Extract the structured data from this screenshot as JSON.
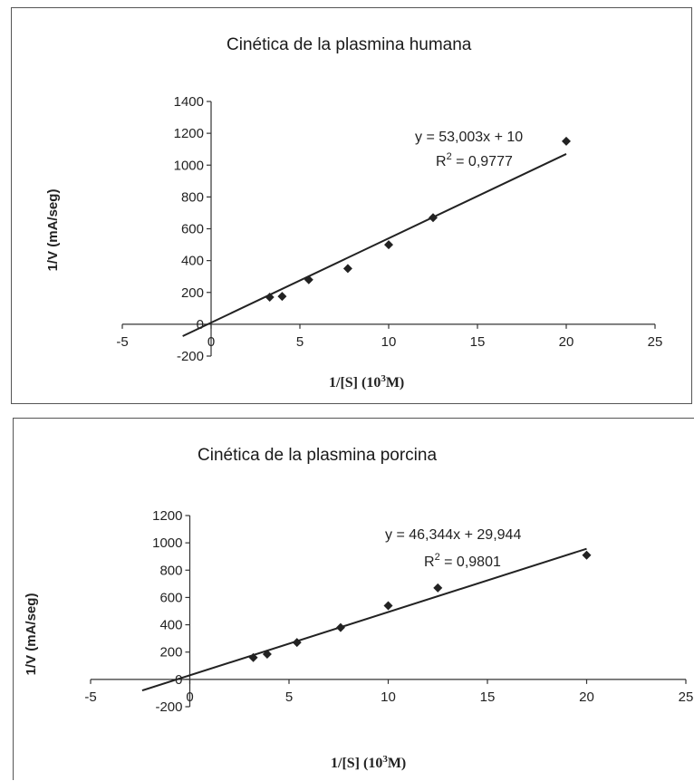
{
  "chart_data": [
    {
      "type": "scatter",
      "title": "Cinética de la plasmina humana",
      "xlabel": "1/[S] (10",
      "xlabel_sup": "3",
      "xlabel_tail": "M)",
      "ylabel": "1/V (mA/seg)",
      "xlim": [
        -5,
        25
      ],
      "ylim": [
        -200,
        1400
      ],
      "xticks": [
        -5,
        0,
        5,
        10,
        15,
        20,
        25
      ],
      "yticks": [
        -200,
        0,
        200,
        400,
        600,
        800,
        1000,
        1200,
        1400
      ],
      "x": [
        3.3,
        4.0,
        5.5,
        7.7,
        10.0,
        12.5,
        20.0
      ],
      "y": [
        170,
        175,
        280,
        350,
        500,
        670,
        1150
      ],
      "trendline": {
        "slope": 53.003,
        "intercept": 10,
        "x_range": [
          -1.6,
          20
        ]
      },
      "equation": "y = 53,003x + 10",
      "r2_prefix": "R",
      "r2_sup": "2",
      "r2_value": " = 0,9777",
      "marker_color": "#222222"
    },
    {
      "type": "scatter",
      "title": "Cinética de la plasmina porcina",
      "xlabel": "1/[S] (10",
      "xlabel_sup": "3",
      "xlabel_tail": "M)",
      "ylabel": "1/V (mA/seg)",
      "xlim": [
        -5,
        25
      ],
      "ylim": [
        -200,
        1200
      ],
      "xticks": [
        -5,
        0,
        5,
        10,
        15,
        20,
        25
      ],
      "yticks": [
        -200,
        0,
        200,
        400,
        600,
        800,
        1000,
        1200
      ],
      "x": [
        3.2,
        3.9,
        5.4,
        7.6,
        10.0,
        12.5,
        20.0
      ],
      "y": [
        160,
        185,
        270,
        380,
        540,
        670,
        910
      ],
      "trendline": {
        "slope": 46.344,
        "intercept": 29.944,
        "x_range": [
          -2.4,
          20
        ]
      },
      "equation": "y = 46,344x + 29,944",
      "r2_prefix": "R",
      "r2_sup": "2",
      "r2_value": " = 0,9801",
      "marker_color": "#222222"
    }
  ]
}
